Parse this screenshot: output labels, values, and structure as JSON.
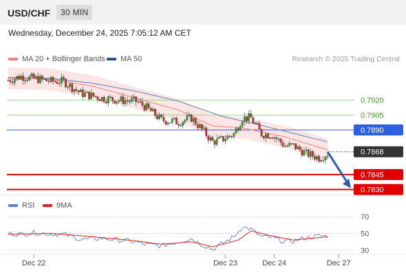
{
  "header": {
    "symbol": "USD/CHF",
    "timeframe": "30 MIN",
    "datetime": "Wednesday, December 24, 2025 7:05:12 AM CET"
  },
  "legend": {
    "ma20": "MA 20 + Bollinger Bands",
    "ma50": "MA 50",
    "credit": "Research © 2025 Trading Central",
    "rsi": "RSI",
    "ma9": "9MA"
  },
  "colors": {
    "up": "#2ca02c",
    "down": "#d62728",
    "ma20": "#f08080",
    "bollinger": "#fbe0e0",
    "ma50": "#5b7db5",
    "resistance": "#9fd08a",
    "pivot": "#2e5fe0",
    "support": "#e00000",
    "current": "#333333",
    "rsi": "#5b7fd0",
    "rsi_ma9": "#e02020"
  },
  "chart_data": [
    {
      "type": "candlestick",
      "title": "USD/CHF 30 MIN",
      "x_ticks": [
        "Dec 22",
        "Dec 23",
        "Dec 24",
        "Dec 27"
      ],
      "ylim": [
        0.782,
        0.796
      ],
      "levels": [
        {
          "label": "0.7920",
          "value": 0.792,
          "kind": "resistance"
        },
        {
          "label": "0.7905",
          "value": 0.7905,
          "kind": "resistance"
        },
        {
          "label": "0.7890",
          "value": 0.789,
          "kind": "pivot"
        },
        {
          "label": "0.7868",
          "value": 0.7868,
          "kind": "current"
        },
        {
          "label": "0.7845",
          "value": 0.7845,
          "kind": "support"
        },
        {
          "label": "0.7830",
          "value": 0.783,
          "kind": "support"
        }
      ],
      "close_anchors": [
        [
          0,
          0.794
        ],
        [
          6,
          0.7944
        ],
        [
          12,
          0.7942
        ],
        [
          20,
          0.7939
        ],
        [
          26,
          0.7939
        ],
        [
          34,
          0.7927
        ],
        [
          44,
          0.7922
        ],
        [
          52,
          0.792
        ],
        [
          60,
          0.7919
        ],
        [
          64,
          0.7914
        ],
        [
          72,
          0.79
        ],
        [
          80,
          0.7898
        ],
        [
          86,
          0.7902
        ],
        [
          90,
          0.7893
        ],
        [
          96,
          0.7878
        ],
        [
          100,
          0.788
        ],
        [
          106,
          0.7886
        ],
        [
          110,
          0.7902
        ],
        [
          114,
          0.7902
        ],
        [
          119,
          0.7886
        ],
        [
          124,
          0.7885
        ],
        [
          130,
          0.7874
        ],
        [
          134,
          0.7874
        ],
        [
          140,
          0.7866
        ],
        [
          146,
          0.7862
        ],
        [
          150,
          0.7866
        ]
      ],
      "ma20_anchors": [
        [
          0,
          0.7942
        ],
        [
          20,
          0.7941
        ],
        [
          40,
          0.7934
        ],
        [
          60,
          0.7922
        ],
        [
          80,
          0.791
        ],
        [
          96,
          0.7894
        ],
        [
          110,
          0.7892
        ],
        [
          130,
          0.7883
        ],
        [
          150,
          0.787
        ]
      ],
      "ma50_anchors": [
        [
          0,
          0.7943
        ],
        [
          20,
          0.7942
        ],
        [
          40,
          0.7937
        ],
        [
          60,
          0.7929
        ],
        [
          80,
          0.7919
        ],
        [
          100,
          0.7904
        ],
        [
          120,
          0.7894
        ],
        [
          150,
          0.7878
        ]
      ],
      "band_width": 0.0011,
      "forecast": {
        "from": 0.7868,
        "to": 0.783
      }
    },
    {
      "type": "line",
      "title": "RSI",
      "ylim": [
        20,
        80
      ],
      "y_ticks": [
        30,
        50,
        70
      ],
      "series": [
        {
          "name": "RSI",
          "anchors": [
            [
              0,
              50
            ],
            [
              6,
              49
            ],
            [
              12,
              51
            ],
            [
              20,
              49
            ],
            [
              26,
              49
            ],
            [
              34,
              43
            ],
            [
              44,
              44
            ],
            [
              52,
              42
            ],
            [
              60,
              40
            ],
            [
              64,
              37
            ],
            [
              72,
              35
            ],
            [
              80,
              40
            ],
            [
              86,
              44
            ],
            [
              90,
              38
            ],
            [
              96,
              31
            ],
            [
              100,
              37
            ],
            [
              106,
              46
            ],
            [
              110,
              58
            ],
            [
              114,
              55
            ],
            [
              119,
              46
            ],
            [
              124,
              45
            ],
            [
              130,
              40
            ],
            [
              134,
              41
            ],
            [
              140,
              45
            ],
            [
              146,
              47
            ],
            [
              150,
              47
            ]
          ]
        },
        {
          "name": "9MA",
          "anchors": [
            [
              0,
              49
            ],
            [
              20,
              50
            ],
            [
              40,
              46
            ],
            [
              60,
              41
            ],
            [
              72,
              37
            ],
            [
              86,
              40
            ],
            [
              96,
              34
            ],
            [
              108,
              42
            ],
            [
              114,
              53
            ],
            [
              122,
              48
            ],
            [
              134,
              42
            ],
            [
              150,
              46
            ]
          ]
        }
      ]
    }
  ]
}
